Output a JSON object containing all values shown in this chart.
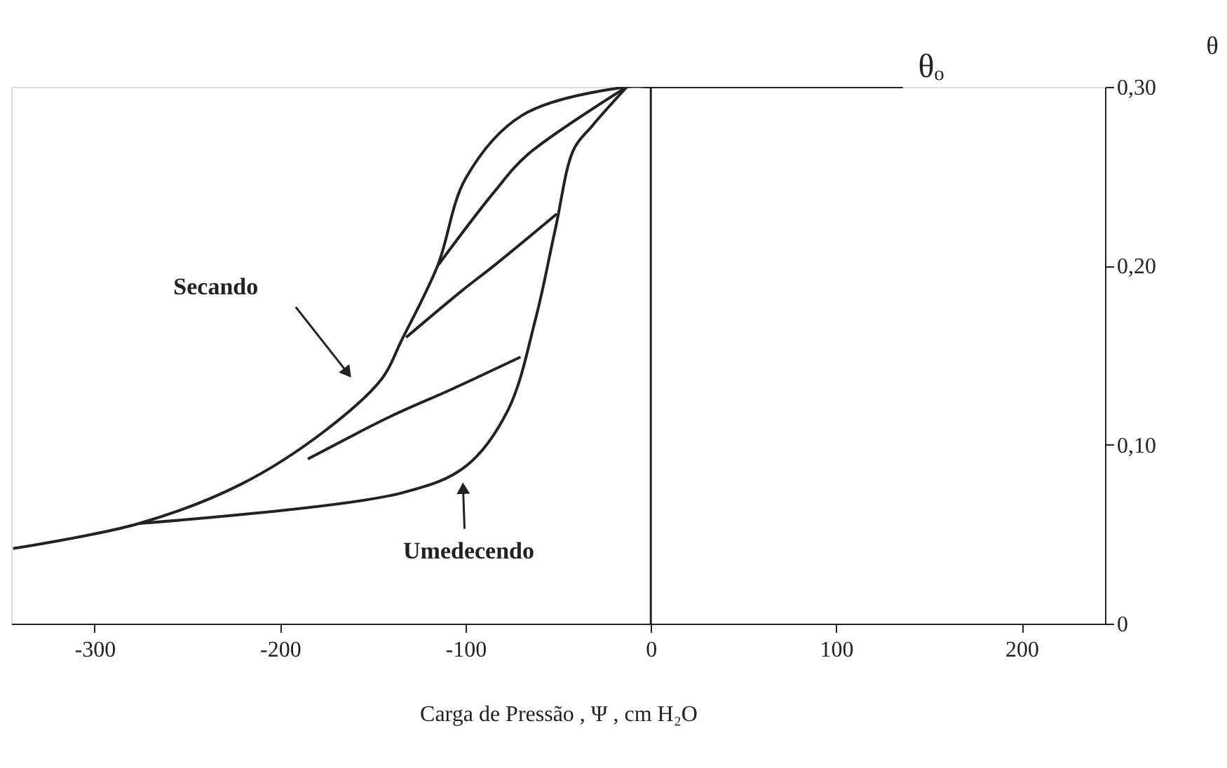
{
  "chart_data": {
    "type": "line",
    "xlabel": "Carga de Pressão , Ψ , cm H₂O",
    "ylabel": "θ",
    "xlim": [
      -345,
      245
    ],
    "xticks": [
      -300,
      -200,
      -100,
      0,
      100,
      200
    ],
    "ylim": [
      0,
      0.3
    ],
    "yticks": [
      0,
      {
        "value": 0.1,
        "label": "0,10"
      },
      {
        "value": 0.2,
        "label": "0,20"
      },
      {
        "value": 0.3,
        "label": "0,30"
      }
    ],
    "grid": false,
    "legend": false,
    "marker": "none",
    "line_style": "solid",
    "series": [
      {
        "color": "#222222",
        "x": [
          136,
          0,
          -12.9,
          -69.6,
          -99.8,
          -115,
          -134.6,
          -145,
          -175.5,
          -220.9,
          -276,
          -344
        ],
        "values": [
          0.3,
          0.3,
          0.3,
          0.284,
          0.249,
          0.2,
          0.158,
          0.137,
          0.108,
          0.078,
          0.056,
          0.042
        ]
      },
      {
        "color": "#222222",
        "x": [
          -276,
          -134.6,
          -99.8,
          -77.2,
          -62,
          -51.4,
          -41.6,
          -31.8,
          -12.9
        ],
        "values": [
          0.056,
          0.073,
          0.088,
          0.119,
          0.171,
          0.221,
          0.265,
          0.278,
          0.3
        ]
      },
      {
        "color": "#222222",
        "x": [
          -12.9,
          -66.6,
          -84.7,
          -115
        ],
        "values": [
          0.3,
          0.262,
          0.241,
          0.2
        ]
      },
      {
        "color": "#222222",
        "x": [
          -50.7,
          -84.7,
          -102,
          -132
        ],
        "values": [
          0.229,
          0.2,
          0.186,
          0.16
        ]
      },
      {
        "color": "#222222",
        "x": [
          -70.3,
          -107.4,
          -140,
          -185
        ],
        "values": [
          0.149,
          0.131,
          0.116,
          0.092
        ]
      }
    ],
    "ref_lines": [
      {
        "axis": "x",
        "value": 0,
        "label": null,
        "color": "#222222"
      }
    ],
    "annotations": [
      "Secando",
      "Umedecendo",
      {
        "text": "θₒ",
        "x": 136,
        "y": 0.3
      }
    ]
  }
}
